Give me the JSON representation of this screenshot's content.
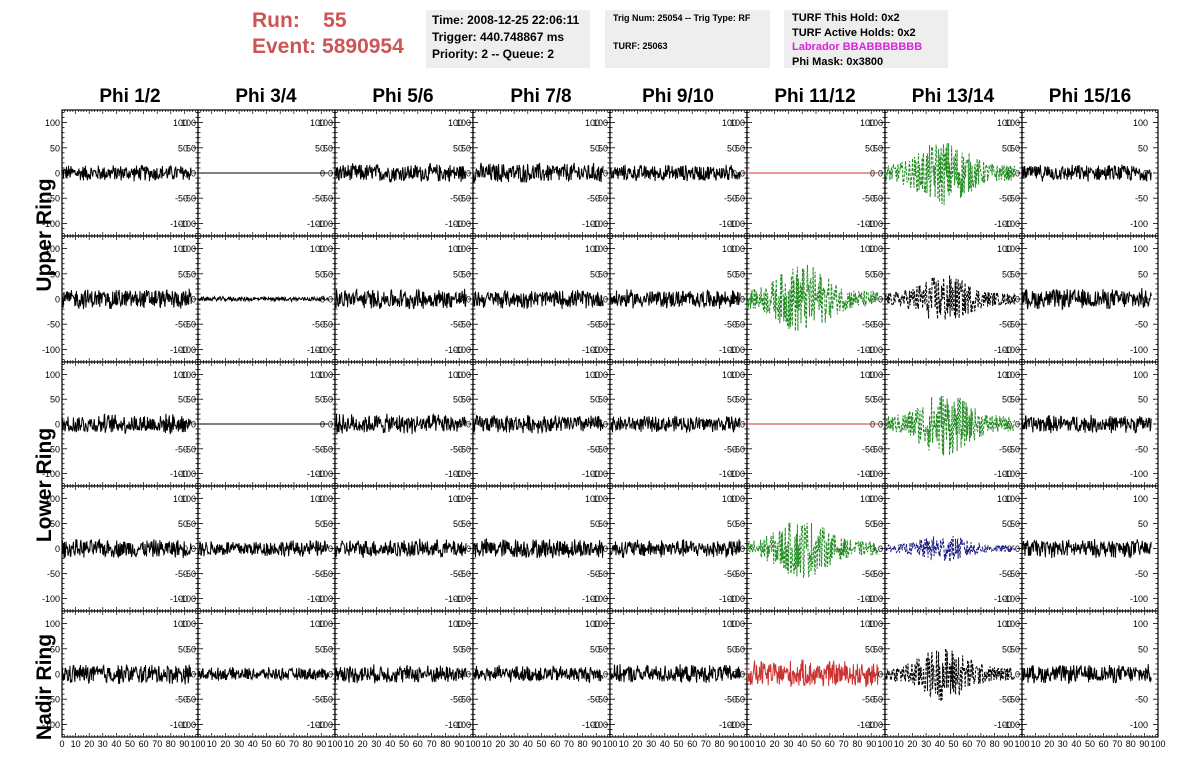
{
  "run": {
    "run_label": "Run:",
    "run_value": "55",
    "event_label": "Event:",
    "event_value": "5890954"
  },
  "info_box_1": {
    "time": "Time: 2008-12-25 22:06:11",
    "trigger": "Trigger: 440.748867 ms",
    "priority": "Priority: 2 -- Queue: 2"
  },
  "info_box_2": {
    "trig": "Trig Num: 25054 -- Trig Type: RF",
    "turf": "TURF: 25063"
  },
  "info_box_3": {
    "this_hold": "TURF This Hold: 0x2",
    "active_holds": "TURF Active Holds: 0x2",
    "labrador": "Labrador BBABBBBBBB",
    "phi_mask": "Phi Mask: 0x3800"
  },
  "phi_headers": [
    "Phi 1/2",
    "Phi 3/4",
    "Phi 5/6",
    "Phi 7/8",
    "Phi 9/10",
    "Phi 11/12",
    "Phi 13/14",
    "Phi 15/16"
  ],
  "ring_labels": [
    "Upper Ring",
    "Lower Ring",
    "Nadir Ring"
  ],
  "y_ticks": [
    "100",
    "50",
    "0",
    "-50",
    "-100"
  ],
  "x_ticks": [
    "0",
    "10",
    "20",
    "30",
    "40",
    "50",
    "60",
    "70",
    "80",
    "90",
    "100"
  ],
  "colors": {
    "title_red": "#cc5555",
    "magenta": "#e020e0",
    "green": "#228b22",
    "red": "#cc3333",
    "navy": "#1a1a80",
    "black": "#000000",
    "panel_bg": "#eeeeee"
  },
  "chart_data": {
    "type": "line",
    "xlim": [
      0,
      100
    ],
    "ylim": [
      -125,
      125
    ],
    "rows": 5,
    "cols": 8,
    "panels": [
      [
        {
          "style": "noise",
          "amp": 18,
          "color": "black"
        },
        {
          "style": "flat",
          "amp": 0,
          "color": "black"
        },
        {
          "style": "noise",
          "amp": 20,
          "color": "black"
        },
        {
          "style": "noise",
          "amp": 22,
          "color": "black"
        },
        {
          "style": "noise",
          "amp": 18,
          "color": "black"
        },
        {
          "style": "flat",
          "amp": 0,
          "color": "red"
        },
        {
          "style": "burst",
          "amp": 60,
          "color": "green",
          "dash": true
        },
        {
          "style": "noise",
          "amp": 18,
          "color": "black"
        }
      ],
      [
        {
          "style": "noise",
          "amp": 22,
          "color": "black"
        },
        {
          "style": "noise",
          "amp": 5,
          "color": "black"
        },
        {
          "style": "noise",
          "amp": 22,
          "color": "black"
        },
        {
          "style": "noise",
          "amp": 20,
          "color": "black"
        },
        {
          "style": "noise",
          "amp": 20,
          "color": "black"
        },
        {
          "style": "burst",
          "amp": 65,
          "color": "green",
          "dash": true
        },
        {
          "style": "burst",
          "amp": 45,
          "color": "black",
          "dash": true
        },
        {
          "style": "noise",
          "amp": 22,
          "color": "black"
        }
      ],
      [
        {
          "style": "noise",
          "amp": 22,
          "color": "black"
        },
        {
          "style": "flat",
          "amp": 0,
          "color": "black"
        },
        {
          "style": "noise",
          "amp": 22,
          "color": "black"
        },
        {
          "style": "noise",
          "amp": 20,
          "color": "black"
        },
        {
          "style": "noise",
          "amp": 18,
          "color": "black"
        },
        {
          "style": "flat",
          "amp": 0,
          "color": "red"
        },
        {
          "style": "burst",
          "amp": 60,
          "color": "green",
          "dash": true
        },
        {
          "style": "noise",
          "amp": 20,
          "color": "black"
        }
      ],
      [
        {
          "style": "noise",
          "amp": 20,
          "color": "black"
        },
        {
          "style": "noise",
          "amp": 18,
          "color": "black"
        },
        {
          "style": "noise",
          "amp": 20,
          "color": "black"
        },
        {
          "style": "noise",
          "amp": 22,
          "color": "black"
        },
        {
          "style": "noise",
          "amp": 20,
          "color": "black"
        },
        {
          "style": "burst",
          "amp": 55,
          "color": "green",
          "dash": true
        },
        {
          "style": "burst",
          "amp": 25,
          "color": "navy",
          "dash": true
        },
        {
          "style": "noise",
          "amp": 20,
          "color": "black"
        }
      ],
      [
        {
          "style": "noise",
          "amp": 22,
          "color": "black"
        },
        {
          "style": "noise",
          "amp": 14,
          "color": "black"
        },
        {
          "style": "noise",
          "amp": 20,
          "color": "black"
        },
        {
          "style": "noise",
          "amp": 18,
          "color": "black"
        },
        {
          "style": "noise",
          "amp": 20,
          "color": "black"
        },
        {
          "style": "noise",
          "amp": 30,
          "color": "red"
        },
        {
          "style": "burst",
          "amp": 50,
          "color": "black",
          "dash": true
        },
        {
          "style": "noise",
          "amp": 20,
          "color": "black"
        }
      ]
    ]
  }
}
